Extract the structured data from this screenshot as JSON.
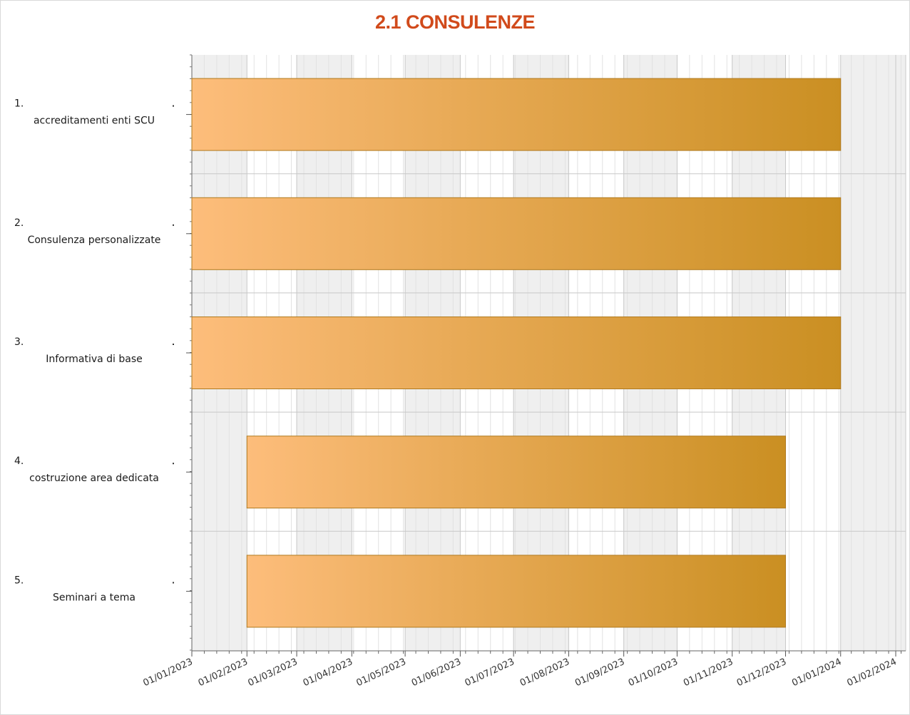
{
  "chart_data": {
    "type": "gantt",
    "title": "2.1 CONSULENZE",
    "categories": [
      {
        "number": "1.",
        "name": "accreditamenti enti SCU"
      },
      {
        "number": "2.",
        "name": "Consulenza personalizzate"
      },
      {
        "number": "3.",
        "name": "Informativa di base"
      },
      {
        "number": "4.",
        "name": "costruzione area dedicata"
      },
      {
        "number": "5.",
        "name": "Seminari a tema"
      }
    ],
    "tasks": [
      {
        "start": "2023-01-01",
        "end": "2024-01-01"
      },
      {
        "start": "2023-01-01",
        "end": "2024-01-01"
      },
      {
        "start": "2023-01-01",
        "end": "2024-01-01"
      },
      {
        "start": "2023-02-01",
        "end": "2023-12-01"
      },
      {
        "start": "2023-02-01",
        "end": "2023-12-01"
      }
    ],
    "x_ticks": [
      "01/01/2023",
      "01/02/2023",
      "01/03/2023",
      "01/04/2023",
      "01/05/2023",
      "01/06/2023",
      "01/07/2023",
      "01/08/2023",
      "01/09/2023",
      "01/10/2023",
      "01/11/2023",
      "01/12/2023",
      "01/01/2024",
      "01/02/2024"
    ],
    "xlim": [
      "2023-01-01",
      "2024-02-01"
    ],
    "grid": true,
    "colors": {
      "bar_start": "#fdbd7b",
      "bar_end": "#ca8f22",
      "bar_border": "#b07a1e",
      "band_shade": "#efefef",
      "grid_major": "#c8c8c8",
      "grid_minor": "#e2e2e2",
      "title": "#d14a1b"
    }
  }
}
